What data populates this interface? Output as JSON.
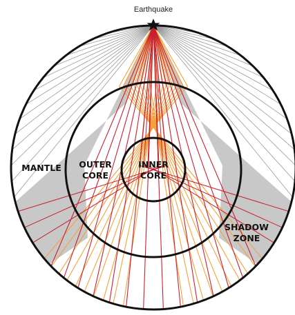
{
  "labels": {
    "source": "Earthquake",
    "mantle": "MANTLE",
    "outer_core": [
      "OUTER",
      "CORE"
    ],
    "inner_core": [
      "INNER",
      "CORE"
    ],
    "shadow_zone": [
      "SHADOW",
      "ZONE"
    ]
  }
}
